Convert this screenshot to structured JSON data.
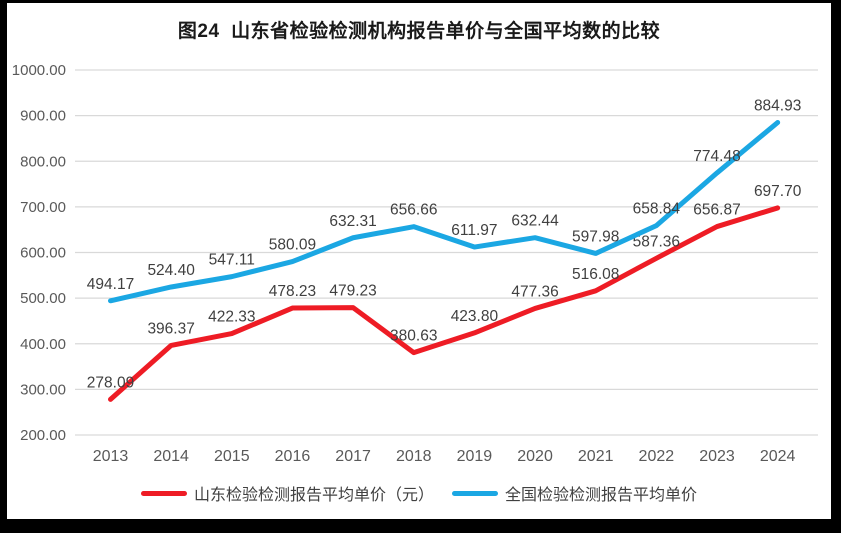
{
  "title": "图24  山东省检验检测机构报告单价与全国平均数的比较",
  "chart_data": {
    "type": "line",
    "categories": [
      "2013",
      "2014",
      "2015",
      "2016",
      "2017",
      "2018",
      "2019",
      "2020",
      "2021",
      "2022",
      "2023",
      "2024"
    ],
    "series": [
      {
        "name": "山东检验检测报告平均单价（元）",
        "color": "#ee1c25",
        "values": [
          278.09,
          396.37,
          422.33,
          478.23,
          479.23,
          380.63,
          423.8,
          477.36,
          516.08,
          587.36,
          656.87,
          697.7
        ]
      },
      {
        "name": "全国检验检测报告平均单价",
        "color": "#1ba7e3",
        "values": [
          494.17,
          524.4,
          547.11,
          580.09,
          632.31,
          656.66,
          611.97,
          632.44,
          597.98,
          658.84,
          774.48,
          884.93
        ]
      }
    ],
    "ylim": [
      200,
      1000
    ],
    "ytick_step": 100,
    "ytick_labels": [
      "200.00",
      "300.00",
      "400.00",
      "500.00",
      "600.00",
      "700.00",
      "800.00",
      "900.00",
      "1000.00"
    ],
    "value_decimals": 2,
    "grid": "horizontal",
    "legend_position": "bottom",
    "colors": {
      "gridline": "#d9d9d9",
      "axis_text": "#595959",
      "data_label_text": "#404040",
      "frame": "#000000",
      "background": "#ffffff"
    }
  }
}
